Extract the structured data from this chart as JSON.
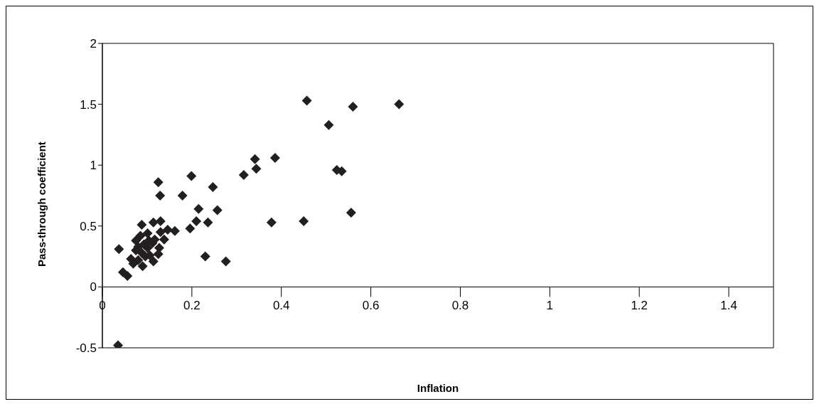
{
  "chart_data": {
    "type": "scatter",
    "xlabel": "Inflation",
    "ylabel": "Pass-through coefficient",
    "marker": "diamond",
    "xlim": [
      0,
      1.5
    ],
    "xticks": [
      0,
      0.2,
      0.4,
      0.6,
      0.8,
      1,
      1.2,
      1.4
    ],
    "ylim": [
      -0.5,
      2
    ],
    "yticks": [
      -0.5,
      0,
      0.5,
      1,
      1.5,
      2
    ],
    "series": [
      {
        "color": "#231f20",
        "x": [
          0.125,
          0.199,
          0.247,
          0.129,
          0.179,
          0.215,
          0.257,
          0.21,
          0.236,
          0.196,
          0.088,
          0.162,
          0.146,
          0.13,
          0.114,
          0.037,
          0.23,
          0.276,
          0.046,
          0.056,
          0.075,
          0.085,
          0.101,
          0.117,
          0.127,
          0.138,
          0.125,
          0.114,
          0.09,
          0.069,
          0.064,
          0.075,
          0.088,
          0.101,
          0.096,
          0.106,
          0.08,
          0.112,
          0.093,
          0.08,
          0.104,
          0.13,
          0.457,
          0.56,
          0.663,
          0.506,
          0.341,
          0.386,
          0.344,
          0.316,
          0.524,
          0.535,
          0.556,
          0.378,
          0.45,
          0.035
        ],
        "values": [
          0.86,
          0.91,
          0.82,
          0.75,
          0.75,
          0.64,
          0.63,
          0.54,
          0.53,
          0.48,
          0.51,
          0.46,
          0.47,
          0.54,
          0.53,
          0.31,
          0.25,
          0.21,
          0.12,
          0.09,
          0.38,
          0.42,
          0.44,
          0.39,
          0.32,
          0.39,
          0.27,
          0.21,
          0.17,
          0.19,
          0.23,
          0.3,
          0.28,
          0.32,
          0.25,
          0.26,
          0.33,
          0.36,
          0.35,
          0.22,
          0.38,
          0.45,
          1.53,
          1.48,
          1.5,
          1.33,
          1.05,
          1.06,
          0.97,
          0.92,
          0.96,
          0.95,
          0.61,
          0.53,
          0.54,
          -0.48
        ]
      }
    ]
  }
}
